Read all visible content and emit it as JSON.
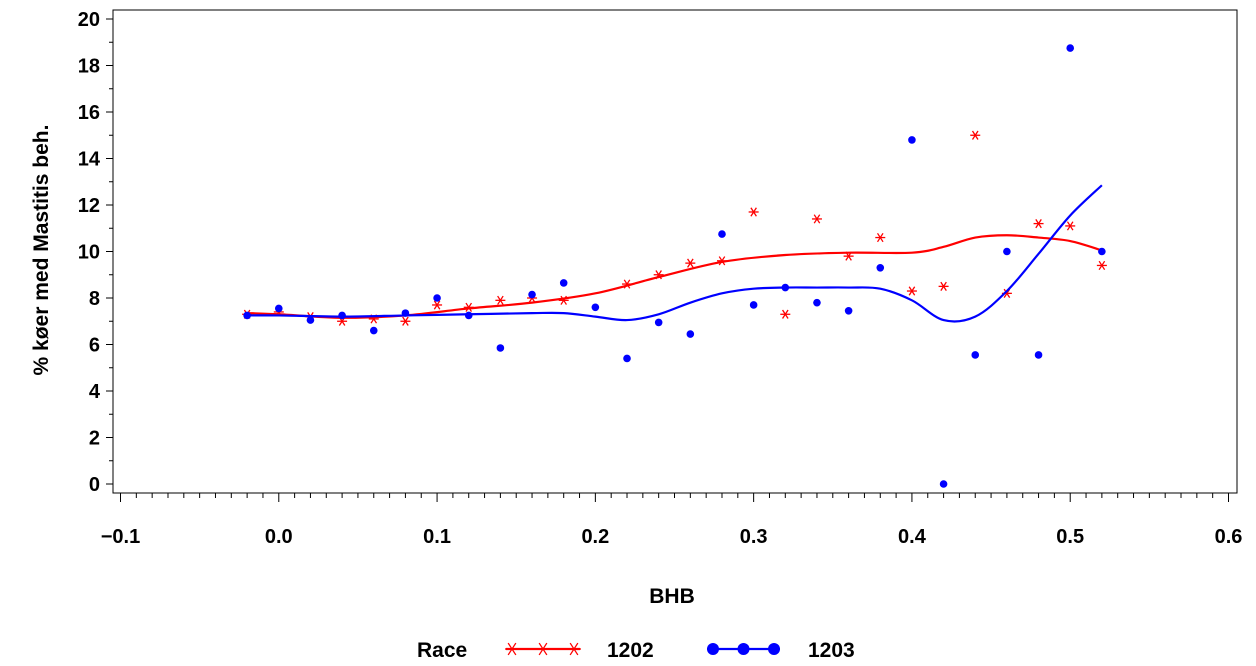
{
  "chart_data": {
    "type": "scatter",
    "xlabel": "BHB",
    "ylabel": "% køer med Mastitis beh.",
    "xlim": [
      -0.1,
      0.6
    ],
    "ylim": [
      0,
      20
    ],
    "x_ticks": [
      "−0.1",
      "0.0",
      "0.1",
      "0.2",
      "0.3",
      "0.4",
      "0.5",
      "0.6"
    ],
    "y_ticks": [
      "0",
      "2",
      "4",
      "6",
      "8",
      "10",
      "12",
      "14",
      "16",
      "18",
      "20"
    ],
    "legend": {
      "title": "Race",
      "placement": "bottom"
    },
    "series": [
      {
        "name": "1202",
        "color": "#ff0000",
        "marker": "star",
        "points": [
          [
            -0.02,
            7.3
          ],
          [
            0.0,
            7.4
          ],
          [
            0.02,
            7.2
          ],
          [
            0.04,
            7.0
          ],
          [
            0.06,
            7.1
          ],
          [
            0.08,
            7.0
          ],
          [
            0.1,
            7.7
          ],
          [
            0.12,
            7.6
          ],
          [
            0.14,
            7.9
          ],
          [
            0.16,
            8.0
          ],
          [
            0.18,
            7.9
          ],
          [
            0.22,
            8.6
          ],
          [
            0.24,
            9.0
          ],
          [
            0.26,
            9.5
          ],
          [
            0.28,
            9.6
          ],
          [
            0.3,
            11.7
          ],
          [
            0.32,
            7.3
          ],
          [
            0.34,
            11.4
          ],
          [
            0.36,
            9.8
          ],
          [
            0.38,
            10.6
          ],
          [
            0.4,
            8.3
          ],
          [
            0.42,
            8.5
          ],
          [
            0.44,
            15.0
          ],
          [
            0.46,
            8.2
          ],
          [
            0.48,
            11.2
          ],
          [
            0.5,
            11.1
          ],
          [
            0.52,
            9.4
          ]
        ],
        "smooth": [
          [
            -0.02,
            7.35
          ],
          [
            0.0,
            7.3
          ],
          [
            0.04,
            7.15
          ],
          [
            0.08,
            7.25
          ],
          [
            0.12,
            7.55
          ],
          [
            0.16,
            7.8
          ],
          [
            0.2,
            8.2
          ],
          [
            0.24,
            8.9
          ],
          [
            0.28,
            9.55
          ],
          [
            0.32,
            9.85
          ],
          [
            0.36,
            9.95
          ],
          [
            0.4,
            9.95
          ],
          [
            0.42,
            10.2
          ],
          [
            0.44,
            10.6
          ],
          [
            0.46,
            10.7
          ],
          [
            0.48,
            10.6
          ],
          [
            0.5,
            10.45
          ],
          [
            0.52,
            10.05
          ]
        ]
      },
      {
        "name": "1203",
        "color": "#0000ff",
        "marker": "dot",
        "points": [
          [
            -0.02,
            7.25
          ],
          [
            0.0,
            7.55
          ],
          [
            0.02,
            7.05
          ],
          [
            0.04,
            7.25
          ],
          [
            0.06,
            6.6
          ],
          [
            0.08,
            7.35
          ],
          [
            0.1,
            8.0
          ],
          [
            0.12,
            7.25
          ],
          [
            0.14,
            5.85
          ],
          [
            0.16,
            8.15
          ],
          [
            0.18,
            8.65
          ],
          [
            0.2,
            7.6
          ],
          [
            0.22,
            5.4
          ],
          [
            0.24,
            6.95
          ],
          [
            0.26,
            6.45
          ],
          [
            0.28,
            10.75
          ],
          [
            0.3,
            7.7
          ],
          [
            0.32,
            8.45
          ],
          [
            0.34,
            7.8
          ],
          [
            0.36,
            7.45
          ],
          [
            0.38,
            9.3
          ],
          [
            0.4,
            14.8
          ],
          [
            0.42,
            0.0
          ],
          [
            0.44,
            5.55
          ],
          [
            0.46,
            10.0
          ],
          [
            0.48,
            5.55
          ],
          [
            0.5,
            18.75
          ],
          [
            0.52,
            10.0
          ]
        ],
        "smooth": [
          [
            -0.02,
            7.25
          ],
          [
            0.0,
            7.25
          ],
          [
            0.04,
            7.2
          ],
          [
            0.08,
            7.25
          ],
          [
            0.12,
            7.3
          ],
          [
            0.16,
            7.35
          ],
          [
            0.18,
            7.35
          ],
          [
            0.2,
            7.2
          ],
          [
            0.22,
            7.05
          ],
          [
            0.24,
            7.3
          ],
          [
            0.26,
            7.8
          ],
          [
            0.28,
            8.2
          ],
          [
            0.3,
            8.4
          ],
          [
            0.32,
            8.45
          ],
          [
            0.34,
            8.45
          ],
          [
            0.36,
            8.45
          ],
          [
            0.38,
            8.4
          ],
          [
            0.4,
            7.9
          ],
          [
            0.42,
            7.05
          ],
          [
            0.44,
            7.2
          ],
          [
            0.46,
            8.3
          ],
          [
            0.48,
            9.9
          ],
          [
            0.5,
            11.55
          ],
          [
            0.52,
            12.85
          ]
        ]
      }
    ]
  }
}
